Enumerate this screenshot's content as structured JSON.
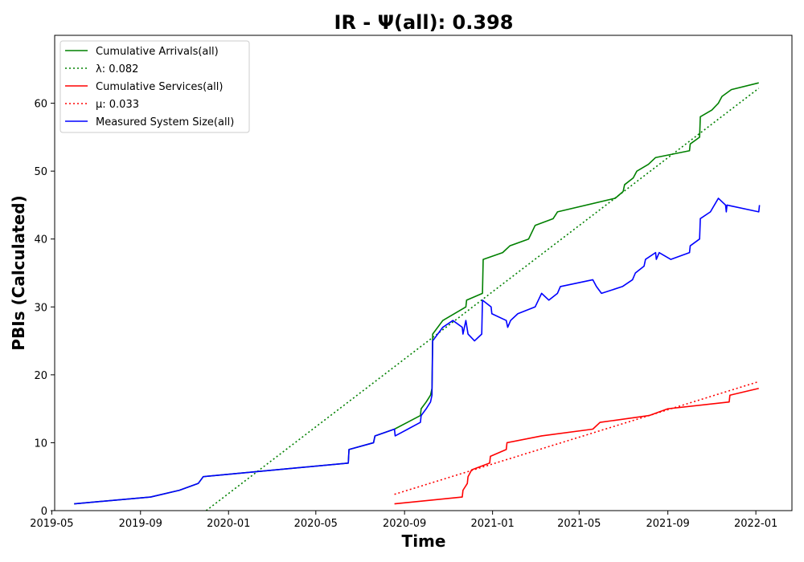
{
  "chart_data": {
    "type": "line",
    "title": "IR -  Ψ(all): 0.398",
    "xlabel": "Time",
    "ylabel": "PBIs (Calculated)",
    "xlim": [
      "2019-05-05",
      "2022-02-20"
    ],
    "ylim": [
      0,
      70
    ],
    "xticks": [
      "2019-05",
      "2019-09",
      "2020-01",
      "2020-05",
      "2020-09",
      "2021-01",
      "2021-05",
      "2021-09",
      "2022-01"
    ],
    "yticks": [
      0,
      10,
      20,
      30,
      40,
      50,
      60
    ],
    "grid": false,
    "legend_position": "top-left",
    "series": [
      {
        "name": "Cumulative Arrivals(all)",
        "color": "#008000",
        "style": "solid",
        "points": [
          [
            "2019-06-01",
            1
          ],
          [
            "2019-09-15",
            2
          ],
          [
            "2019-10-25",
            3
          ],
          [
            "2019-11-20",
            4
          ],
          [
            "2019-11-27",
            5
          ],
          [
            "2020-02-15",
            5.8
          ],
          [
            "2020-06-15",
            7
          ],
          [
            "2020-06-16",
            9
          ],
          [
            "2020-07-20",
            10
          ],
          [
            "2020-07-22",
            11
          ],
          [
            "2020-08-18",
            12
          ],
          [
            "2020-09-23",
            14
          ],
          [
            "2020-09-24",
            15
          ],
          [
            "2020-10-01",
            16
          ],
          [
            "2020-10-07",
            17
          ],
          [
            "2020-10-09",
            18
          ],
          [
            "2020-10-10",
            26
          ],
          [
            "2020-10-24",
            28
          ],
          [
            "2020-11-25",
            30
          ],
          [
            "2020-11-26",
            31
          ],
          [
            "2020-12-18",
            32
          ],
          [
            "2020-12-19",
            37
          ],
          [
            "2021-01-15",
            38
          ],
          [
            "2021-01-25",
            39
          ],
          [
            "2021-02-20",
            40
          ],
          [
            "2021-03-01",
            42
          ],
          [
            "2021-03-26",
            43
          ],
          [
            "2021-04-01",
            44
          ],
          [
            "2021-06-20",
            46
          ],
          [
            "2021-07-01",
            47
          ],
          [
            "2021-07-03",
            48
          ],
          [
            "2021-07-15",
            49
          ],
          [
            "2021-07-20",
            50
          ],
          [
            "2021-08-05",
            51
          ],
          [
            "2021-08-15",
            52
          ],
          [
            "2021-10-01",
            53
          ],
          [
            "2021-10-02",
            54
          ],
          [
            "2021-10-15",
            55
          ],
          [
            "2021-10-16",
            58
          ],
          [
            "2021-11-01",
            59
          ],
          [
            "2021-11-10",
            60
          ],
          [
            "2021-11-15",
            61
          ],
          [
            "2021-11-28",
            62
          ],
          [
            "2022-01-05",
            63
          ]
        ]
      },
      {
        "name": "λ: 0.082",
        "color": "#008000",
        "style": "dotted",
        "points": [
          [
            "2019-12-01",
            0
          ],
          [
            "2022-01-05",
            62.2
          ]
        ]
      },
      {
        "name": "Cumulative Services(all)",
        "color": "#ff0000",
        "style": "solid",
        "points": [
          [
            "2020-08-18",
            1
          ],
          [
            "2020-11-20",
            2
          ],
          [
            "2020-11-21",
            3
          ],
          [
            "2020-11-27",
            4
          ],
          [
            "2020-11-28",
            5
          ],
          [
            "2020-12-03",
            6
          ],
          [
            "2020-12-28",
            7
          ],
          [
            "2020-12-29",
            8
          ],
          [
            "2021-01-20",
            9
          ],
          [
            "2021-01-21",
            10
          ],
          [
            "2021-03-10",
            11
          ],
          [
            "2021-05-20",
            12
          ],
          [
            "2021-05-30",
            13
          ],
          [
            "2021-08-06",
            14
          ],
          [
            "2021-09-01",
            15
          ],
          [
            "2021-11-25",
            16
          ],
          [
            "2021-11-26",
            17
          ],
          [
            "2022-01-05",
            18
          ]
        ]
      },
      {
        "name": "μ: 0.033",
        "color": "#ff0000",
        "style": "dotted",
        "points": [
          [
            "2020-08-18",
            2.4
          ],
          [
            "2022-01-05",
            19
          ]
        ]
      },
      {
        "name": "Measured System Size(all)",
        "color": "#0000ff",
        "style": "solid",
        "points": [
          [
            "2019-06-01",
            1
          ],
          [
            "2019-09-15",
            2
          ],
          [
            "2019-10-25",
            3
          ],
          [
            "2019-11-20",
            4
          ],
          [
            "2019-11-27",
            5
          ],
          [
            "2020-02-15",
            5.8
          ],
          [
            "2020-06-15",
            7
          ],
          [
            "2020-06-16",
            9
          ],
          [
            "2020-07-20",
            10
          ],
          [
            "2020-07-22",
            11
          ],
          [
            "2020-08-18",
            12
          ],
          [
            "2020-08-19",
            11
          ],
          [
            "2020-09-23",
            13
          ],
          [
            "2020-09-24",
            14
          ],
          [
            "2020-10-01",
            15
          ],
          [
            "2020-10-07",
            16
          ],
          [
            "2020-10-09",
            17
          ],
          [
            "2020-10-10",
            25
          ],
          [
            "2020-10-24",
            27
          ],
          [
            "2020-11-07",
            28
          ],
          [
            "2020-11-20",
            27
          ],
          [
            "2020-11-21",
            26
          ],
          [
            "2020-11-25",
            28
          ],
          [
            "2020-11-28",
            26
          ],
          [
            "2020-12-07",
            25
          ],
          [
            "2020-12-17",
            26
          ],
          [
            "2020-12-18",
            31
          ],
          [
            "2020-12-30",
            30
          ],
          [
            "2020-12-31",
            29
          ],
          [
            "2021-01-20",
            28
          ],
          [
            "2021-01-22",
            27
          ],
          [
            "2021-01-26",
            28
          ],
          [
            "2021-02-05",
            29
          ],
          [
            "2021-03-01",
            30
          ],
          [
            "2021-03-10",
            32
          ],
          [
            "2021-03-20",
            31
          ],
          [
            "2021-04-01",
            32
          ],
          [
            "2021-04-05",
            33
          ],
          [
            "2021-05-20",
            34
          ],
          [
            "2021-05-25",
            33
          ],
          [
            "2021-06-01",
            32
          ],
          [
            "2021-06-30",
            33
          ],
          [
            "2021-07-14",
            34
          ],
          [
            "2021-07-18",
            35
          ],
          [
            "2021-07-30",
            36
          ],
          [
            "2021-08-01",
            37
          ],
          [
            "2021-08-15",
            38
          ],
          [
            "2021-08-16",
            37
          ],
          [
            "2021-08-20",
            38
          ],
          [
            "2021-09-05",
            37
          ],
          [
            "2021-10-01",
            38
          ],
          [
            "2021-10-02",
            39
          ],
          [
            "2021-10-15",
            40
          ],
          [
            "2021-10-16",
            43
          ],
          [
            "2021-10-30",
            44
          ],
          [
            "2021-11-10",
            46
          ],
          [
            "2021-11-20",
            45
          ],
          [
            "2021-11-21",
            44
          ],
          [
            "2021-11-22",
            45
          ],
          [
            "2022-01-05",
            44
          ],
          [
            "2022-01-06",
            45
          ]
        ]
      }
    ]
  }
}
